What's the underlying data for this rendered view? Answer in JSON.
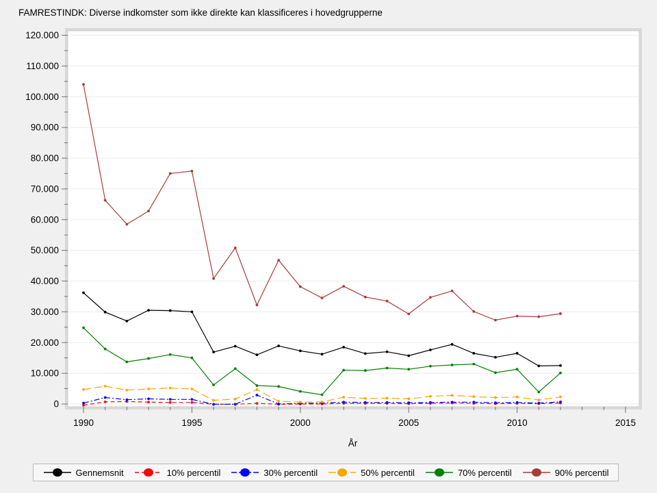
{
  "title": "FAMRESTINDK: Diverse indkomster som ikke direkte kan klassificeres i hovedgrupperne",
  "chart_data": {
    "type": "line",
    "x": [
      1990,
      1991,
      1992,
      1993,
      1994,
      1995,
      1996,
      1997,
      1998,
      1999,
      2000,
      2001,
      2002,
      2003,
      2004,
      2005,
      2006,
      2007,
      2008,
      2009,
      2010,
      2011,
      2012
    ],
    "xlabel": "År",
    "ylabel": "",
    "xlim": [
      1989.3,
      2015.6
    ],
    "ylim": [
      -900,
      121500
    ],
    "x_ticks_major": [
      1990,
      1995,
      2000,
      2005,
      2010,
      2015
    ],
    "x_minor_tick_step": 1,
    "y_ticks_major": [
      0,
      10000,
      20000,
      30000,
      40000,
      50000,
      60000,
      70000,
      80000,
      90000,
      100000,
      110000,
      120000
    ],
    "y_minor_tick_step": 5000,
    "y_tick_label_format": "thousands-dot",
    "grid": "horizontal",
    "legend_position": "bottom",
    "series": [
      {
        "name": "Gennemsnit",
        "color": "#000000",
        "dash": "",
        "values": [
          36200,
          29900,
          27000,
          30500,
          30400,
          30000,
          16900,
          18800,
          16000,
          18900,
          17300,
          16200,
          18500,
          16400,
          17000,
          15700,
          17600,
          19400,
          16500,
          15200,
          16500,
          12400,
          12500
        ]
      },
      {
        "name": "10% percentil",
        "color": "#ff0000",
        "dash": "6,4",
        "values": [
          -400,
          700,
          800,
          600,
          500,
          500,
          -100,
          -100,
          200,
          -100,
          0,
          0,
          200,
          200,
          200,
          100,
          200,
          300,
          200,
          100,
          200,
          100,
          300
        ]
      },
      {
        "name": "30% percentil",
        "color": "#0000ff",
        "dash": "8,3,2,3",
        "values": [
          300,
          2100,
          1400,
          1700,
          1500,
          1500,
          -100,
          -100,
          2900,
          0,
          200,
          300,
          600,
          500,
          500,
          400,
          500,
          600,
          600,
          400,
          500,
          300,
          700
        ]
      },
      {
        "name": "50% percentil",
        "color": "#ffa500",
        "dash": "11,5",
        "values": [
          4700,
          5800,
          4500,
          4900,
          5200,
          4900,
          1200,
          1600,
          4700,
          900,
          600,
          700,
          2200,
          1800,
          1900,
          1700,
          2500,
          2800,
          2400,
          2100,
          2300,
          1300,
          2300
        ]
      },
      {
        "name": "70% percentil",
        "color": "#008000",
        "dash": "",
        "values": [
          24800,
          17900,
          13700,
          14800,
          16100,
          15000,
          6200,
          11500,
          6000,
          5700,
          4100,
          3000,
          11000,
          10900,
          11700,
          11300,
          12300,
          12700,
          13000,
          10200,
          11300,
          3900,
          10100
        ]
      },
      {
        "name": "90% percentil",
        "color": "#a83b3b",
        "dash": "",
        "values": [
          104000,
          66300,
          58500,
          62800,
          75000,
          75800,
          40800,
          50800,
          32200,
          46800,
          38200,
          34500,
          38300,
          34800,
          33500,
          29300,
          34700,
          36800,
          30100,
          27300,
          28600,
          28400,
          29400
        ]
      }
    ]
  }
}
